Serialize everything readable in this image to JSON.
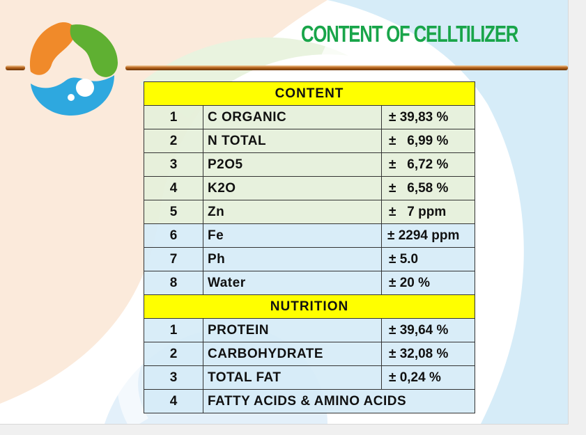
{
  "slide": {
    "title": "CONTENT OF CELLTILIZER",
    "colors": {
      "title": "#19a54a",
      "header_fill": "#ffff00",
      "logo_orange": "#f08a2a",
      "logo_green": "#5fb032",
      "logo_blue": "#2ea8df"
    },
    "logo_icon": "celltilizer-swirl-logo",
    "sections": [
      {
        "header": "CONTENT",
        "rows": [
          {
            "no": "1",
            "name": "C ORGANIC",
            "value": "± 39,83 %"
          },
          {
            "no": "2",
            "name": "N TOTAL",
            "value": "±   6,99 %"
          },
          {
            "no": "3",
            "name": "P2O5",
            "value": "±   6,72 %"
          },
          {
            "no": "4",
            "name": "K2O",
            "value": "±   6,58 %"
          },
          {
            "no": "5",
            "name": "Zn",
            "value": "±   7 ppm"
          },
          {
            "no": "6",
            "name": "Fe",
            "value": "± 2294 ppm"
          },
          {
            "no": "7",
            "name": "Ph",
            "value": "± 5.0"
          },
          {
            "no": "8",
            "name": "Water",
            "value": "± 20 %"
          }
        ]
      },
      {
        "header": "NUTRITION",
        "rows": [
          {
            "no": "1",
            "name": "PROTEIN",
            "value": "± 39,64 %"
          },
          {
            "no": "2",
            "name": "CARBOHYDRATE",
            "value": "± 32,08 %"
          },
          {
            "no": "3",
            "name": "TOTAL FAT",
            "value": "± 0,24 %"
          },
          {
            "no": "4",
            "name": "FATTY ACIDS & AMINO ACIDS",
            "value": ""
          }
        ]
      }
    ]
  }
}
